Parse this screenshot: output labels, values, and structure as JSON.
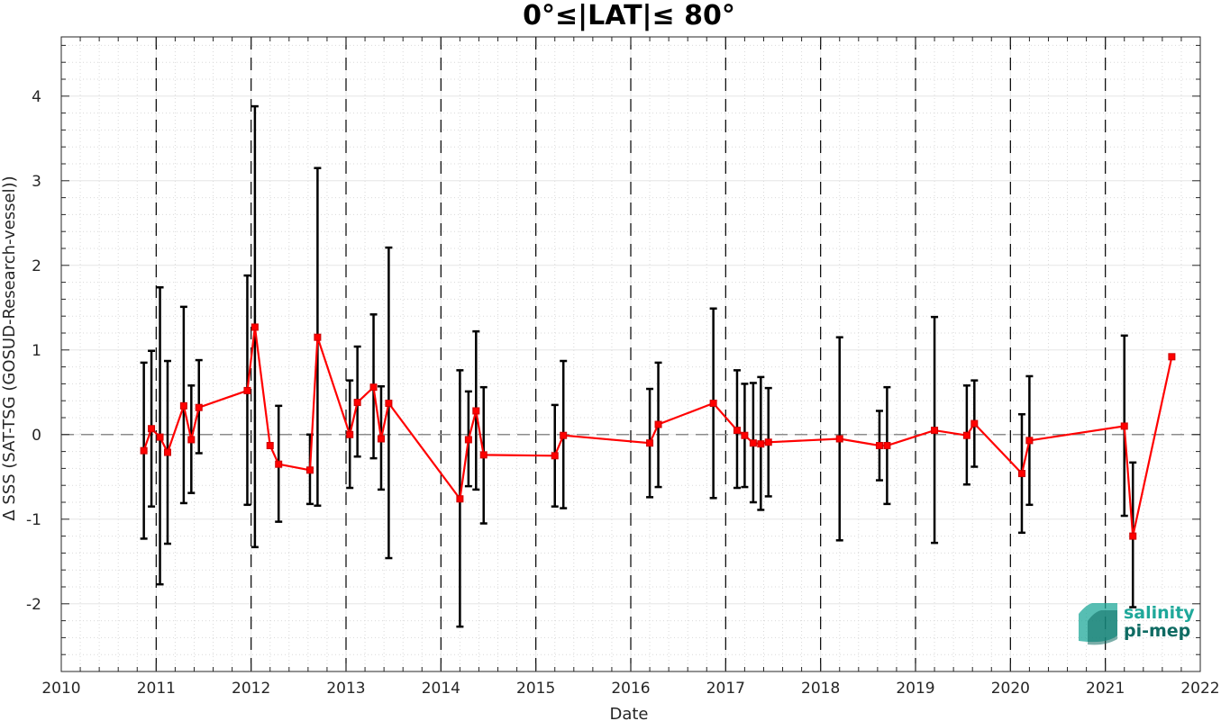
{
  "chart_data": {
    "type": "line",
    "title": "0°≤|LAT|≤ 80°",
    "xlabel": "Date",
    "ylabel": "Δ SSS (SAT-TSG (GOSUD-Research-vessel))",
    "xlim": [
      2010,
      2022
    ],
    "ylim": [
      -2.8,
      4.7
    ],
    "x_ticks": [
      "2010",
      "2011",
      "2012",
      "2013",
      "2014",
      "2015",
      "2016",
      "2017",
      "2018",
      "2019",
      "2020",
      "2021",
      "2022"
    ],
    "y_ticks": [
      "-2",
      "-1",
      "0",
      "1",
      "2",
      "3",
      "4"
    ],
    "grid": true,
    "minor_grid": true,
    "reference_line": 0,
    "year_separators": [
      2011,
      2012,
      2013,
      2014,
      2015,
      2016,
      2017,
      2018,
      2019,
      2020,
      2021
    ],
    "line_color": "#ff0000",
    "errorbar_color": "#000000",
    "series": [
      {
        "x": [
          2010.87,
          2010.95,
          2011.04,
          2011.12,
          2011.29,
          2011.37,
          2011.45,
          2011.96,
          2012.04,
          2012.2,
          2012.29,
          2012.62,
          2012.7,
          2013.04,
          2013.12,
          2013.29,
          2013.37,
          2013.45,
          2014.2,
          2014.29,
          2014.37,
          2014.45,
          2015.2,
          2015.29,
          2016.2,
          2016.29,
          2016.87,
          2017.12,
          2017.2,
          2017.29,
          2017.37,
          2017.45,
          2018.2,
          2018.62,
          2018.7,
          2019.2,
          2019.54,
          2019.62,
          2020.12,
          2020.2,
          2021.2,
          2021.29,
          2021.7
        ],
        "y": [
          -0.19,
          0.07,
          -0.03,
          -0.21,
          0.34,
          -0.06,
          0.32,
          0.52,
          1.27,
          -0.13,
          -0.35,
          -0.42,
          1.15,
          0.0,
          0.38,
          0.56,
          -0.05,
          0.37,
          -0.76,
          -0.06,
          0.28,
          -0.24,
          -0.25,
          -0.01,
          -0.1,
          0.12,
          0.37,
          0.05,
          -0.01,
          -0.1,
          -0.11,
          -0.09,
          -0.05,
          -0.13,
          -0.13,
          0.05,
          -0.01,
          0.13,
          -0.46,
          -0.07,
          0.1,
          -1.2,
          0.92
        ],
        "y_low": [
          -1.23,
          -0.85,
          -1.77,
          -1.29,
          -0.81,
          -0.69,
          -0.22,
          -0.83,
          -1.33,
          null,
          -1.03,
          -0.82,
          -0.84,
          -0.63,
          -0.26,
          -0.28,
          -0.65,
          -1.46,
          -2.27,
          -0.61,
          -0.65,
          -1.05,
          -0.85,
          -0.87,
          -0.74,
          -0.62,
          -0.75,
          -0.63,
          -0.62,
          -0.8,
          -0.89,
          -0.73,
          -1.25,
          -0.54,
          -0.82,
          -1.28,
          -0.59,
          -0.38,
          -1.16,
          -0.83,
          -0.96,
          -2.04,
          null
        ],
        "y_high": [
          0.85,
          0.99,
          1.74,
          0.87,
          1.51,
          0.58,
          0.88,
          1.88,
          3.88,
          null,
          0.34,
          0.0,
          3.15,
          0.64,
          1.04,
          1.42,
          0.57,
          2.21,
          0.76,
          0.51,
          1.22,
          0.56,
          0.35,
          0.87,
          0.54,
          0.85,
          1.49,
          0.76,
          0.6,
          0.61,
          0.68,
          0.55,
          1.15,
          0.28,
          0.56,
          1.39,
          0.58,
          0.64,
          0.24,
          0.69,
          1.17,
          -0.33,
          null
        ]
      }
    ]
  },
  "logo": {
    "line1": "salinity",
    "line2": "pi-mep",
    "color1": "#1fa89a",
    "color2": "#0f6b63"
  }
}
